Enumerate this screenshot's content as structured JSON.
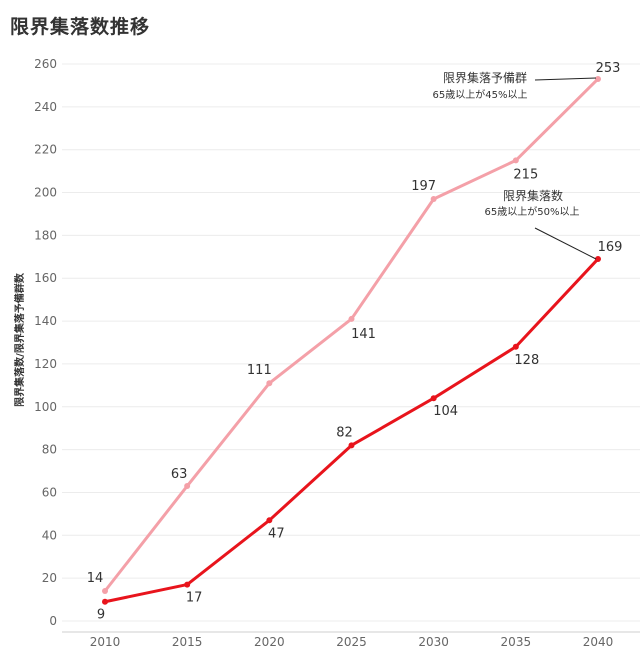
{
  "page": {
    "title": "限界集落数推移"
  },
  "chart_data": {
    "type": "line",
    "title": "限界集落数推移",
    "xlabel": "",
    "ylabel": "限界集落数/限界集落予備群数",
    "x": [
      "2010",
      "2015",
      "2020",
      "2025",
      "2030",
      "2035",
      "2040"
    ],
    "ylim": [
      0,
      260
    ],
    "yticks": [
      0,
      20,
      40,
      60,
      80,
      100,
      120,
      140,
      160,
      180,
      200,
      220,
      240,
      260
    ],
    "grid": true,
    "series": [
      {
        "values": [
          14,
          63,
          111,
          141,
          197,
          215,
          253
        ],
        "color": "#f4a0a8",
        "labels": [
          "14",
          "63",
          "111",
          "141",
          "197",
          "215",
          "253"
        ],
        "annotation": {
          "title": "限界集落予備群",
          "subtitle": "65歳以上が45%以上"
        }
      },
      {
        "values": [
          9,
          17,
          47,
          82,
          104,
          128,
          169
        ],
        "color": "#e8141c",
        "labels": [
          "9",
          "17",
          "47",
          "82",
          "104",
          "128",
          "169"
        ],
        "annotation": {
          "title": "限界集落数",
          "subtitle": "65歳以上が50%以上"
        }
      }
    ]
  }
}
